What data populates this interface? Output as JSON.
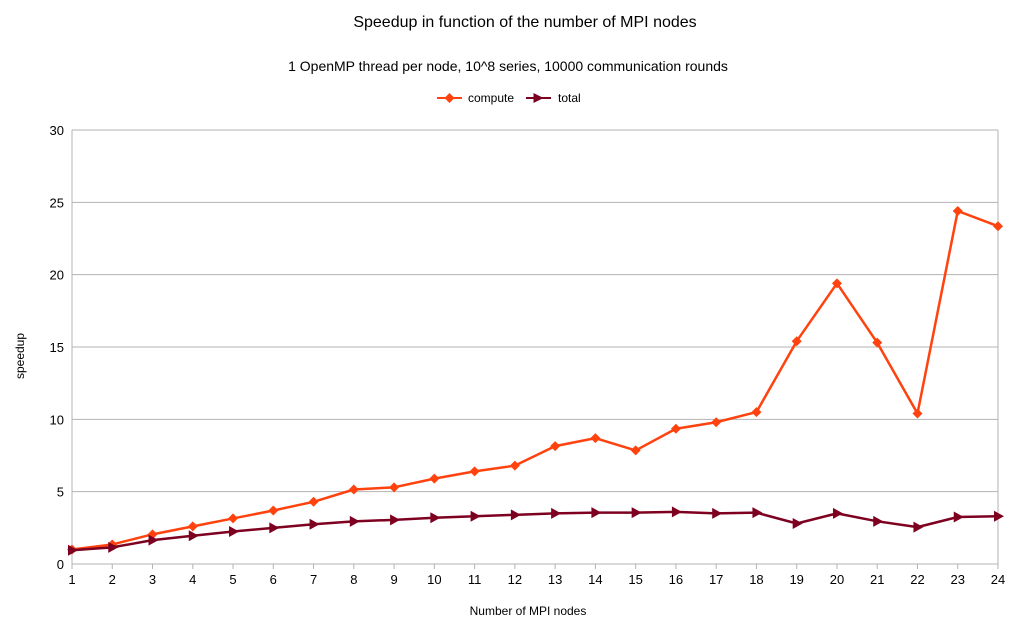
{
  "chart_data": {
    "type": "line",
    "title": "Speedup in function of the number of MPI nodes",
    "subtitle": "1 OpenMP thread per node, 10^8 series, 10000 communication rounds",
    "xlabel": "Number of MPI nodes",
    "ylabel": "speedup",
    "x": [
      1,
      2,
      3,
      4,
      5,
      6,
      7,
      8,
      9,
      10,
      11,
      12,
      13,
      14,
      15,
      16,
      17,
      18,
      19,
      20,
      21,
      22,
      23,
      24
    ],
    "ylim": [
      0,
      30
    ],
    "yticks": [
      0,
      5,
      10,
      15,
      20,
      25,
      30
    ],
    "grid": true,
    "legend_position": "top",
    "series": [
      {
        "name": "compute",
        "color": "#ff420e",
        "marker": "diamond",
        "values": [
          1,
          1.35,
          2.05,
          2.6,
          3.15,
          3.7,
          4.3,
          5.15,
          5.3,
          5.9,
          6.4,
          6.8,
          8.15,
          8.7,
          7.85,
          9.35,
          9.8,
          10.5,
          15.4,
          19.4,
          15.3,
          10.4,
          24.4,
          23.35
        ]
      },
      {
        "name": "total",
        "color": "#7e0021",
        "marker": "triangle-right",
        "values": [
          0.95,
          1.15,
          1.65,
          1.95,
          2.25,
          2.5,
          2.75,
          2.95,
          3.05,
          3.2,
          3.3,
          3.4,
          3.5,
          3.55,
          3.55,
          3.6,
          3.5,
          3.55,
          2.8,
          3.5,
          2.95,
          2.55,
          3.25,
          3.3
        ]
      }
    ]
  }
}
